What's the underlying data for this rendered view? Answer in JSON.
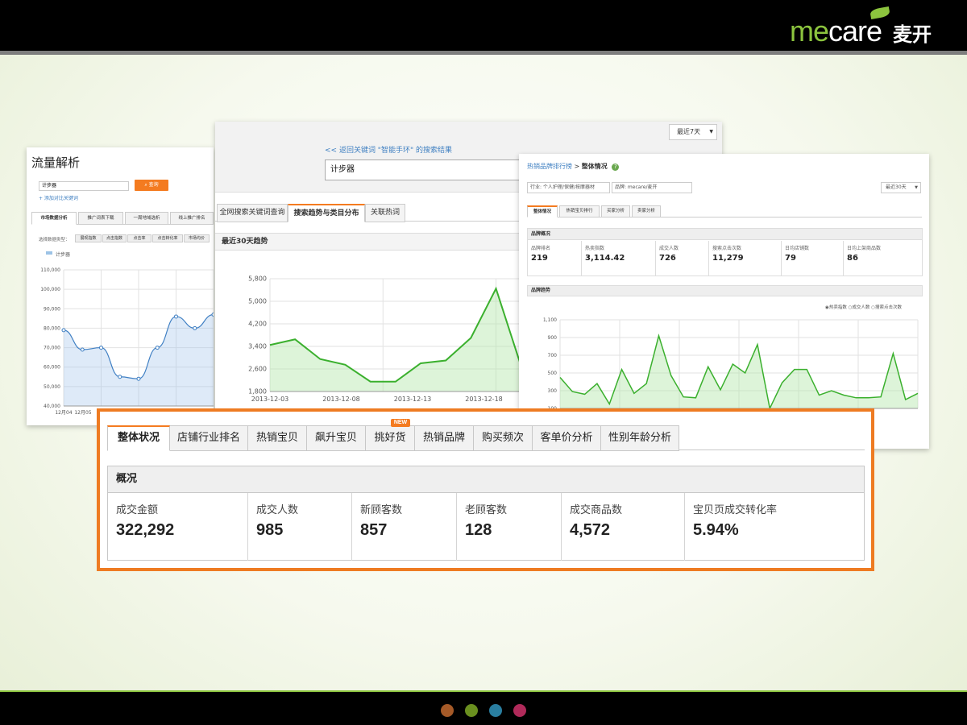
{
  "logo": {
    "text_a": "me",
    "text_b": "care",
    "cn": "麦开",
    "color": "#8cc43e"
  },
  "footer_dots": [
    "#a55a28",
    "#6a8f1f",
    "#2a7ea0",
    "#b02a5a"
  ],
  "left_panel": {
    "title": "流量解析",
    "search_value": "计步器",
    "search_button": "查询",
    "add_link": "+ 添加对比关键词",
    "tabs": [
      "市场数据分析",
      "推广词表下载",
      "一周地域选析",
      "线上推广排名"
    ],
    "filter_label": "选择数据类型：",
    "filters": [
      "展现指数",
      "点击指数",
      "点击率",
      "点击转化率",
      "市场均价"
    ],
    "legend": "计步器",
    "chart_data": {
      "type": "area",
      "y_ticks": [
        "110,000",
        "100,000",
        "90,000",
        "80,000",
        "70,000",
        "60,000",
        "50,000",
        "40,000"
      ],
      "ylim": [
        40000,
        110000
      ],
      "x_ticks": [
        "12月04",
        "12月05"
      ],
      "values": [
        79000,
        69000,
        70000,
        55000,
        54000,
        70000,
        86000,
        80000,
        87000
      ]
    }
  },
  "middle_panel": {
    "range_select": "最近7天",
    "back_link": "<< 返回关键词 \"智能手环\" 的搜索结果",
    "search_value": "计步器",
    "tabs": [
      "全网搜索关键词查询",
      "搜索趋势与类目分布",
      "关联热词"
    ],
    "section_title": "最近30天趋势",
    "chart_data": {
      "type": "area",
      "y_ticks": [
        "5,800",
        "5,000",
        "4,200",
        "3,400",
        "2,600",
        "1,800"
      ],
      "ylim": [
        1800,
        5800
      ],
      "x_ticks": [
        "2013-12-03",
        "2013-12-08",
        "2013-12-13",
        "2013-12-18"
      ],
      "values": [
        3450,
        3650,
        2950,
        2750,
        2150,
        2150,
        2800,
        2900,
        3700,
        5450,
        2700,
        2150,
        2250,
        5100,
        4200,
        3900,
        2250,
        2200,
        2100
      ],
      "color": "#3bb02e"
    }
  },
  "right_panel": {
    "crumb_link": "热销品牌排行榜",
    "crumb_sep": ">",
    "crumb_current": "整体情况",
    "help": "?",
    "industry_input": "行业: 个人护理/保健/按摩器材",
    "brand_input": "品牌: mecare/麦开",
    "range_select": "最近30天",
    "tabs": [
      "整体情况",
      "热销宝贝排行",
      "买家分析",
      "卖家分析"
    ],
    "overview_title": "品牌概况",
    "metrics": [
      {
        "label": "品牌排名",
        "value": "219"
      },
      {
        "label": "热卖指数",
        "value": "3,114.42"
      },
      {
        "label": "成交人数",
        "value": "726"
      },
      {
        "label": "搜索点击次数",
        "value": "11,279"
      },
      {
        "label": "日均店铺数",
        "value": "79"
      },
      {
        "label": "日均上架商品数",
        "value": "86"
      }
    ],
    "trend_title": "品牌趋势",
    "legend": [
      "热卖指数",
      "成交人数",
      "搜索点击次数"
    ],
    "chart_data": {
      "type": "area",
      "y_ticks": [
        "1,100",
        "900",
        "700",
        "500",
        "300",
        "100"
      ],
      "ylim": [
        100,
        1100
      ],
      "values": [
        450,
        290,
        260,
        380,
        150,
        540,
        270,
        380,
        920,
        470,
        230,
        220,
        570,
        310,
        600,
        500,
        820,
        100,
        390,
        540,
        540,
        250,
        300,
        250,
        220,
        220,
        230,
        720,
        200,
        270
      ],
      "color": "#3bb02e"
    }
  },
  "highlight": {
    "tabs": [
      "整体状况",
      "店铺行业排名",
      "热销宝贝",
      "飙升宝贝",
      "挑好货",
      "热销品牌",
      "购买频次",
      "客单价分析",
      "性别年龄分析"
    ],
    "new_badge": "NEW",
    "title": "概况",
    "metrics": [
      {
        "label": "成交金额",
        "value": "322,292"
      },
      {
        "label": "成交人数",
        "value": "985"
      },
      {
        "label": "新顾客数",
        "value": "857"
      },
      {
        "label": "老顾客数",
        "value": "128"
      },
      {
        "label": "成交商品数",
        "value": "4,572"
      },
      {
        "label": "宝贝页成交转化率",
        "value": "5.94%"
      }
    ]
  }
}
